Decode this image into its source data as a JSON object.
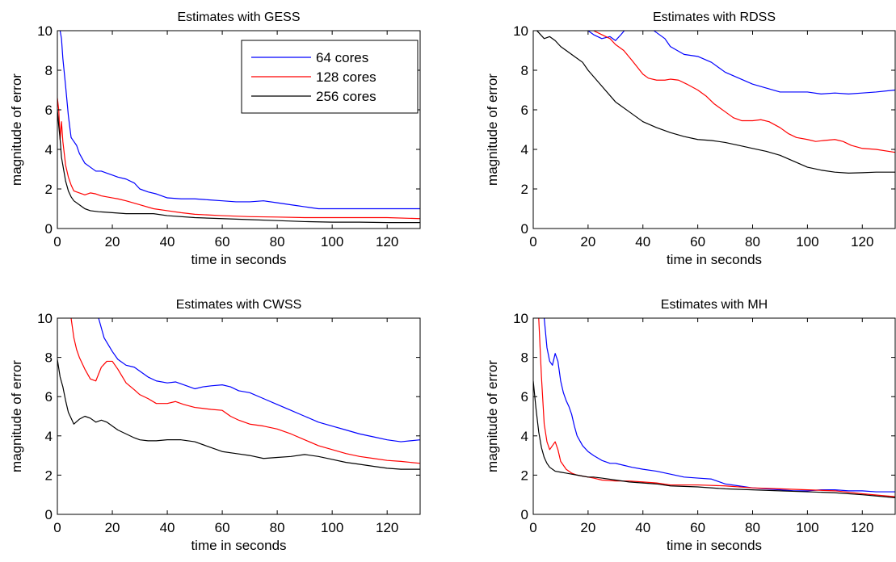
{
  "series_colors": {
    "64 cores": "#0000ff",
    "128 cores": "#ff0000",
    "256 cores": "#000000"
  },
  "chart_data": [
    {
      "type": "line",
      "title": "Estimates with GESS",
      "xlabel": "time in seconds",
      "ylabel": "magnitude of error",
      "xlim": [
        0,
        132
      ],
      "ylim": [
        0,
        10
      ],
      "xticks": [
        0,
        20,
        40,
        60,
        80,
        100,
        120
      ],
      "yticks": [
        0,
        2,
        4,
        6,
        8,
        10
      ],
      "legend": {
        "placement": "top-right",
        "entries": [
          "64 cores",
          "128 cores",
          "256 cores"
        ]
      },
      "series": [
        {
          "name": "64 cores",
          "color": "#0000ff",
          "x": [
            0,
            0.5,
            1,
            1.5,
            2,
            3,
            4,
            5,
            6,
            7,
            8,
            10,
            12,
            14,
            16,
            18,
            20,
            22,
            25,
            28,
            30,
            33,
            36,
            40,
            45,
            50,
            55,
            60,
            65,
            70,
            75,
            80,
            85,
            90,
            95,
            100,
            105,
            110,
            115,
            120,
            125,
            132
          ],
          "y": [
            10,
            10.2,
            10,
            9.6,
            8.6,
            7.2,
            5.7,
            4.6,
            4.4,
            4.2,
            3.8,
            3.3,
            3.1,
            2.9,
            2.9,
            2.8,
            2.7,
            2.6,
            2.5,
            2.3,
            2.0,
            1.85,
            1.75,
            1.55,
            1.5,
            1.5,
            1.45,
            1.4,
            1.35,
            1.35,
            1.4,
            1.3,
            1.2,
            1.1,
            1.0,
            1.0,
            1.0,
            1.0,
            1.0,
            1.0,
            1.0,
            1.0
          ]
        },
        {
          "name": "128 cores",
          "color": "#ff0000",
          "x": [
            0,
            0.5,
            1,
            1.5,
            2,
            3,
            4,
            5,
            6,
            8,
            10,
            12,
            14,
            16,
            18,
            20,
            22,
            25,
            30,
            35,
            40,
            45,
            50,
            60,
            70,
            80,
            90,
            100,
            110,
            120,
            132
          ],
          "y": [
            6.6,
            6.0,
            4.5,
            5.4,
            4.4,
            3.2,
            2.6,
            2.2,
            1.9,
            1.8,
            1.7,
            1.8,
            1.75,
            1.65,
            1.6,
            1.55,
            1.5,
            1.4,
            1.2,
            1.0,
            0.9,
            0.8,
            0.72,
            0.65,
            0.6,
            0.58,
            0.55,
            0.55,
            0.55,
            0.55,
            0.5
          ]
        },
        {
          "name": "256 cores",
          "color": "#000000",
          "x": [
            0,
            0.5,
            1,
            1.5,
            2,
            3,
            4,
            5,
            6,
            8,
            10,
            12,
            15,
            20,
            25,
            30,
            35,
            40,
            50,
            60,
            70,
            80,
            90,
            100,
            110,
            120,
            132
          ],
          "y": [
            6.0,
            5.2,
            4.5,
            3.6,
            3.2,
            2.4,
            1.9,
            1.6,
            1.4,
            1.2,
            1.0,
            0.9,
            0.85,
            0.8,
            0.75,
            0.75,
            0.75,
            0.65,
            0.55,
            0.5,
            0.45,
            0.4,
            0.35,
            0.32,
            0.32,
            0.3,
            0.3
          ]
        }
      ]
    },
    {
      "type": "line",
      "title": "Estimates with RDSS",
      "xlabel": "time in seconds",
      "ylabel": "magnitude of error",
      "xlim": [
        0,
        132
      ],
      "ylim": [
        0,
        10
      ],
      "xticks": [
        0,
        20,
        40,
        60,
        80,
        100,
        120
      ],
      "yticks": [
        0,
        2,
        4,
        6,
        8,
        10
      ],
      "series": [
        {
          "name": "64 cores",
          "color": "#0000ff",
          "x": [
            20,
            22,
            25,
            28,
            30,
            32,
            35,
            38,
            40,
            42,
            45,
            48,
            50,
            55,
            60,
            65,
            70,
            75,
            80,
            85,
            90,
            95,
            100,
            105,
            110,
            115,
            120,
            125,
            132
          ],
          "y": [
            10,
            9.8,
            9.6,
            9.7,
            9.5,
            9.8,
            10.3,
            10.6,
            10.6,
            10.2,
            9.9,
            9.6,
            9.2,
            8.8,
            8.7,
            8.4,
            7.9,
            7.6,
            7.3,
            7.1,
            6.9,
            6.9,
            6.9,
            6.8,
            6.85,
            6.8,
            6.85,
            6.9,
            7.0
          ]
        },
        {
          "name": "128 cores",
          "color": "#ff0000",
          "x": [
            22,
            25,
            28,
            30,
            33,
            36,
            40,
            42,
            45,
            48,
            50,
            53,
            56,
            60,
            63,
            66,
            70,
            73,
            76,
            80,
            83,
            86,
            90,
            93,
            96,
            100,
            103,
            106,
            110,
            113,
            116,
            120,
            125,
            132
          ],
          "y": [
            10,
            9.8,
            9.6,
            9.3,
            9.0,
            8.5,
            7.8,
            7.6,
            7.5,
            7.5,
            7.55,
            7.5,
            7.3,
            7.0,
            6.7,
            6.3,
            5.9,
            5.6,
            5.45,
            5.45,
            5.5,
            5.4,
            5.1,
            4.8,
            4.6,
            4.5,
            4.4,
            4.45,
            4.5,
            4.4,
            4.2,
            4.05,
            4.0,
            3.85
          ]
        },
        {
          "name": "256 cores",
          "color": "#000000",
          "x": [
            0,
            2,
            4,
            6,
            8,
            10,
            12,
            15,
            18,
            20,
            25,
            30,
            35,
            40,
            45,
            50,
            55,
            60,
            65,
            70,
            75,
            80,
            85,
            90,
            95,
            100,
            105,
            110,
            115,
            120,
            125,
            132
          ],
          "y": [
            10.2,
            9.9,
            9.6,
            9.7,
            9.5,
            9.2,
            9.0,
            8.7,
            8.4,
            8.0,
            7.2,
            6.4,
            5.9,
            5.4,
            5.1,
            4.85,
            4.65,
            4.5,
            4.45,
            4.35,
            4.2,
            4.05,
            3.9,
            3.7,
            3.4,
            3.1,
            2.95,
            2.85,
            2.8,
            2.82,
            2.85,
            2.85
          ]
        }
      ]
    },
    {
      "type": "line",
      "title": "Estimates with CWSS",
      "xlabel": "time in seconds",
      "ylabel": "magnitude of error",
      "xlim": [
        0,
        132
      ],
      "ylim": [
        0,
        10
      ],
      "xticks": [
        0,
        20,
        40,
        60,
        80,
        100,
        120
      ],
      "yticks": [
        0,
        2,
        4,
        6,
        8,
        10
      ],
      "series": [
        {
          "name": "64 cores",
          "color": "#0000ff",
          "x": [
            15,
            17,
            20,
            22,
            25,
            28,
            30,
            33,
            36,
            40,
            43,
            46,
            50,
            53,
            56,
            60,
            63,
            66,
            70,
            75,
            80,
            85,
            90,
            95,
            100,
            105,
            110,
            115,
            120,
            125,
            132
          ],
          "y": [
            10,
            9.0,
            8.3,
            7.9,
            7.6,
            7.5,
            7.3,
            7.0,
            6.8,
            6.7,
            6.75,
            6.6,
            6.4,
            6.5,
            6.55,
            6.6,
            6.5,
            6.3,
            6.2,
            5.9,
            5.6,
            5.3,
            5.0,
            4.7,
            4.5,
            4.3,
            4.1,
            3.95,
            3.8,
            3.7,
            3.8
          ]
        },
        {
          "name": "128 cores",
          "color": "#ff0000",
          "x": [
            5,
            6,
            7,
            8,
            10,
            12,
            14,
            16,
            18,
            20,
            22,
            25,
            28,
            30,
            33,
            36,
            40,
            43,
            46,
            50,
            53,
            56,
            60,
            63,
            66,
            70,
            75,
            80,
            85,
            90,
            95,
            100,
            105,
            110,
            115,
            120,
            125,
            132
          ],
          "y": [
            10,
            9.0,
            8.4,
            8.0,
            7.4,
            6.9,
            6.8,
            7.5,
            7.8,
            7.8,
            7.4,
            6.7,
            6.35,
            6.1,
            5.9,
            5.65,
            5.65,
            5.75,
            5.6,
            5.45,
            5.4,
            5.35,
            5.3,
            5.0,
            4.8,
            4.6,
            4.5,
            4.35,
            4.1,
            3.8,
            3.5,
            3.3,
            3.1,
            2.95,
            2.85,
            2.75,
            2.7,
            2.6
          ]
        },
        {
          "name": "256 cores",
          "color": "#000000",
          "x": [
            0,
            1,
            2,
            3,
            4,
            5,
            6,
            8,
            10,
            12,
            14,
            16,
            18,
            20,
            22,
            25,
            28,
            30,
            33,
            36,
            40,
            45,
            50,
            55,
            60,
            65,
            70,
            75,
            80,
            85,
            90,
            95,
            100,
            105,
            110,
            115,
            120,
            125,
            132
          ],
          "y": [
            7.9,
            7.0,
            6.5,
            5.8,
            5.2,
            4.9,
            4.6,
            4.85,
            5.0,
            4.9,
            4.7,
            4.8,
            4.7,
            4.5,
            4.3,
            4.1,
            3.9,
            3.8,
            3.75,
            3.75,
            3.8,
            3.8,
            3.7,
            3.45,
            3.2,
            3.1,
            3.0,
            2.85,
            2.9,
            2.95,
            3.05,
            2.95,
            2.8,
            2.65,
            2.55,
            2.45,
            2.35,
            2.3,
            2.3
          ]
        }
      ]
    },
    {
      "type": "line",
      "title": "Estimates with MH",
      "xlabel": "time in seconds",
      "ylabel": "magnitude of error",
      "xlim": [
        0,
        132
      ],
      "ylim": [
        0,
        10
      ],
      "xticks": [
        0,
        20,
        40,
        60,
        80,
        100,
        120
      ],
      "yticks": [
        0,
        2,
        4,
        6,
        8,
        10
      ],
      "series": [
        {
          "name": "64 cores",
          "color": "#0000ff",
          "x": [
            4,
            5,
            6,
            7,
            8,
            9,
            10,
            11,
            12,
            13,
            14,
            15,
            16,
            18,
            20,
            22,
            25,
            28,
            30,
            33,
            36,
            40,
            45,
            50,
            55,
            60,
            65,
            70,
            75,
            80,
            85,
            90,
            95,
            100,
            105,
            110,
            115,
            120,
            125,
            132
          ],
          "y": [
            10,
            8.5,
            7.8,
            7.6,
            8.2,
            7.8,
            6.8,
            6.2,
            5.8,
            5.5,
            5.1,
            4.5,
            4.0,
            3.5,
            3.2,
            3.0,
            2.75,
            2.6,
            2.6,
            2.5,
            2.4,
            2.3,
            2.2,
            2.05,
            1.9,
            1.85,
            1.8,
            1.55,
            1.45,
            1.35,
            1.3,
            1.25,
            1.2,
            1.2,
            1.25,
            1.25,
            1.2,
            1.2,
            1.15,
            1.15
          ]
        },
        {
          "name": "128 cores",
          "color": "#ff0000",
          "x": [
            2,
            3,
            4,
            5,
            6,
            7,
            8,
            9,
            10,
            12,
            14,
            16,
            18,
            20,
            22,
            25,
            30,
            35,
            40,
            45,
            50,
            60,
            70,
            80,
            90,
            100,
            110,
            120,
            132
          ],
          "y": [
            10,
            7.0,
            4.6,
            3.7,
            3.3,
            3.5,
            3.7,
            3.3,
            2.7,
            2.3,
            2.1,
            2.0,
            1.95,
            1.9,
            1.85,
            1.75,
            1.7,
            1.7,
            1.65,
            1.6,
            1.5,
            1.5,
            1.45,
            1.35,
            1.3,
            1.25,
            1.2,
            1.05,
            0.9
          ]
        },
        {
          "name": "256 cores",
          "color": "#000000",
          "x": [
            0,
            1,
            2,
            3,
            4,
            5,
            6,
            8,
            10,
            12,
            14,
            16,
            18,
            20,
            22,
            25,
            30,
            35,
            40,
            45,
            50,
            60,
            70,
            80,
            90,
            100,
            110,
            120,
            132
          ],
          "y": [
            6.8,
            5.4,
            4.2,
            3.4,
            2.9,
            2.6,
            2.4,
            2.2,
            2.15,
            2.1,
            2.05,
            2.0,
            1.95,
            1.9,
            1.9,
            1.85,
            1.75,
            1.65,
            1.6,
            1.55,
            1.45,
            1.4,
            1.3,
            1.25,
            1.2,
            1.15,
            1.1,
            1.0,
            0.85
          ]
        }
      ]
    }
  ]
}
